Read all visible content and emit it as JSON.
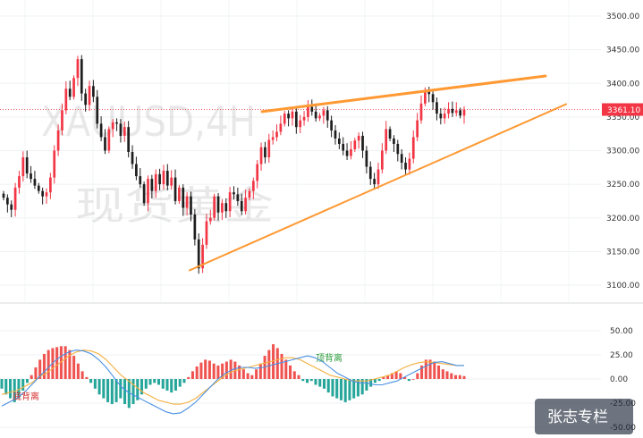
{
  "chart_data": [
    {
      "type": "candlestick",
      "watermark": [
        "XAUUSD,4H",
        "现货黄金"
      ],
      "price_axis_ticks": [
        3100,
        3150,
        3200,
        3250,
        3300,
        3350,
        3400,
        3450,
        3500
      ],
      "ylim": [
        3080,
        3510
      ],
      "current_price": {
        "label": "3361.10",
        "value": 3361.1,
        "color": "#f23645"
      },
      "colors": {
        "up": "#f23645",
        "down": "#1e1e1e",
        "trendline": "#ff9933"
      },
      "closes": [
        3230,
        3220,
        3212,
        3245,
        3262,
        3290,
        3266,
        3258,
        3248,
        3240,
        3232,
        3238,
        3260,
        3300,
        3330,
        3360,
        3392,
        3380,
        3408,
        3436,
        3385,
        3368,
        3396,
        3380,
        3340,
        3320,
        3300,
        3332,
        3342,
        3340,
        3322,
        3335,
        3298,
        3280,
        3262,
        3250,
        3222,
        3258,
        3240,
        3265,
        3250,
        3270,
        3248,
        3260,
        3225,
        3245,
        3215,
        3232,
        3205,
        3168,
        3125,
        3160,
        3195,
        3200,
        3232,
        3208,
        3222,
        3210,
        3238,
        3235,
        3225,
        3210,
        3230,
        3240,
        3255,
        3280,
        3305,
        3290,
        3316,
        3320,
        3328,
        3340,
        3355,
        3348,
        3358,
        3335,
        3345,
        3350,
        3365,
        3358,
        3348,
        3352,
        3360,
        3345,
        3330,
        3318,
        3310,
        3300,
        3292,
        3302,
        3315,
        3322,
        3300,
        3276,
        3258,
        3250,
        3272,
        3300,
        3332,
        3318,
        3310,
        3295,
        3282,
        3272,
        3288,
        3320,
        3345,
        3370,
        3390,
        3384,
        3372,
        3355,
        3348,
        3355,
        3362,
        3356,
        3360,
        3352,
        3361
      ],
      "trendlines": [
        {
          "from": [
            212,
            3122
          ],
          "to": [
            633,
            3369
          ]
        },
        {
          "from": [
            293,
            3358
          ],
          "to": [
            610,
            3411
          ]
        }
      ],
      "gridlines": true
    },
    {
      "type": "histogram",
      "indicator": "MACD",
      "axis_ticks": [
        "50.00",
        "25.00",
        "0.00",
        "-25.00",
        "-50.00"
      ],
      "ylim": [
        -55,
        60
      ],
      "histogram": [
        -10,
        -16,
        -20,
        -24,
        -20,
        -12,
        -4,
        4,
        12,
        20,
        26,
        30,
        32,
        33,
        34,
        34,
        30,
        24,
        16,
        8,
        2,
        -4,
        -10,
        -16,
        -20,
        -24,
        -26,
        -24,
        -20,
        -26,
        -30,
        -26,
        -22,
        -16,
        -10,
        -6,
        -4,
        -6,
        -10,
        -12,
        -14,
        -12,
        -8,
        -4,
        2,
        8,
        13,
        17,
        20,
        19,
        16,
        14,
        16,
        18,
        20,
        18,
        14,
        10,
        6,
        4,
        10,
        16,
        24,
        30,
        36,
        32,
        26,
        20,
        14,
        8,
        4,
        -2,
        -4,
        -2,
        -6,
        -8,
        -10,
        -14,
        -18,
        -20,
        -22,
        -24,
        -22,
        -20,
        -18,
        -16,
        -12,
        -8,
        -4,
        -2,
        2,
        4,
        6,
        8,
        6,
        2,
        -2,
        0,
        6,
        14,
        20,
        20,
        18,
        14,
        10,
        8,
        6,
        4,
        4,
        3
      ],
      "macd_line": [
        -28,
        -24,
        -20,
        -14,
        -6,
        2,
        10,
        18,
        24,
        28,
        30,
        29,
        26,
        20,
        12,
        2,
        -8,
        -14,
        -18,
        -22,
        -26,
        -30,
        -34,
        -36,
        -35,
        -30,
        -24,
        -16,
        -8,
        0,
        6,
        10,
        12,
        12,
        11,
        12,
        14,
        16,
        18,
        20,
        22,
        24,
        22,
        18,
        12,
        6,
        2,
        -2,
        -4,
        -4,
        -6,
        -6,
        -4,
        -2,
        2,
        6,
        10,
        14,
        17,
        18,
        16,
        14,
        14
      ],
      "signal_line": [
        -16,
        -14,
        -12,
        -8,
        -4,
        2,
        6,
        12,
        18,
        24,
        28,
        30,
        29,
        26,
        20,
        12,
        4,
        -2,
        -8,
        -14,
        -18,
        -22,
        -24,
        -26,
        -26,
        -24,
        -20,
        -14,
        -8,
        -2,
        4,
        8,
        10,
        12,
        14,
        16,
        18,
        20,
        22,
        22,
        20,
        16,
        12,
        8,
        4,
        2,
        0,
        -2,
        -2,
        -2,
        0,
        2,
        4,
        8,
        12,
        15,
        17,
        18,
        17,
        16,
        15,
        14,
        14
      ],
      "colors": {
        "positive": "#ef5350",
        "negative": "#26a69a",
        "macd": "#4a90e2",
        "signal": "#f5b041"
      },
      "annotations": [
        {
          "text": "底背离",
          "color": "#d32f2f"
        },
        {
          "text": "顶背离",
          "color": "#2e9e3e"
        }
      ]
    }
  ],
  "brand": "张志专栏"
}
